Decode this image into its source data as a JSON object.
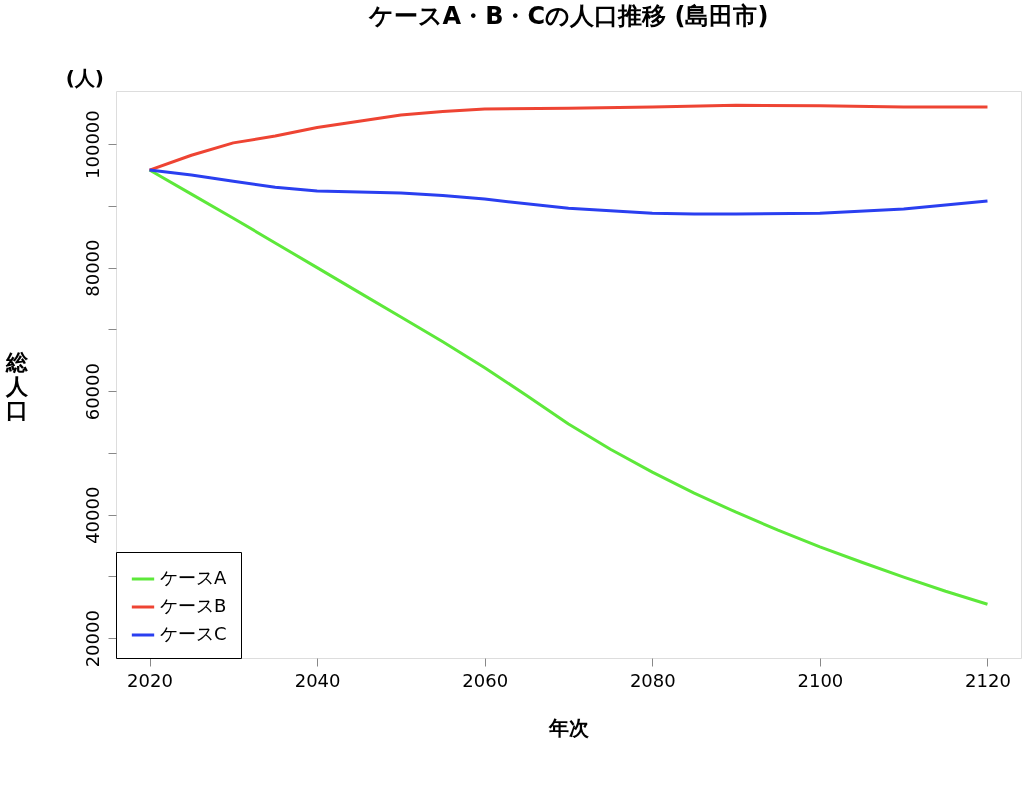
{
  "chart_data": {
    "type": "line",
    "title": "ケースA・B・Cの人口推移 (島田市)",
    "xlabel": "年次",
    "ylabel": "総人口",
    "annotations": [
      "(人)"
    ],
    "xlim": [
      2016,
      2124
    ],
    "xticks": [
      2020,
      2040,
      2060,
      2080,
      2100,
      2120
    ],
    "ylim": [
      16800,
      108600
    ],
    "yticks": [
      20000,
      {
        "value": 30000,
        "label": null
      },
      40000,
      {
        "value": 50000,
        "label": null
      },
      60000,
      {
        "value": 70000,
        "label": null
      },
      80000,
      {
        "value": 90000,
        "label": null
      },
      100000
    ],
    "grid": false,
    "legend": "bottom left",
    "marker": "none",
    "line_style": "solid",
    "series": [
      {
        "name": "ケースA",
        "color": "#5de83a",
        "x": [
          2020,
          2025,
          2030,
          2035,
          2040,
          2045,
          2050,
          2055,
          2060,
          2065,
          2070,
          2075,
          2080,
          2085,
          2090,
          2095,
          2100,
          2105,
          2110,
          2115,
          2120
        ],
        "values": [
          95800,
          91900,
          88000,
          84000,
          80000,
          76000,
          72000,
          68000,
          63800,
          59300,
          54700,
          50600,
          46900,
          43500,
          40400,
          37500,
          34800,
          32300,
          29900,
          27600,
          25500
        ]
      },
      {
        "name": "ケースB",
        "color": "#ee4433",
        "x": [
          2020,
          2025,
          2030,
          2035,
          2040,
          2045,
          2050,
          2055,
          2060,
          2070,
          2080,
          2090,
          2100,
          2110,
          2120
        ],
        "values": [
          95800,
          98200,
          100200,
          101300,
          102700,
          103700,
          104700,
          105300,
          105700,
          105800,
          106000,
          106300,
          106200,
          106000,
          106000
        ]
      },
      {
        "name": "ケースC",
        "color": "#2a3ff0",
        "x": [
          2020,
          2025,
          2030,
          2035,
          2040,
          2050,
          2055,
          2060,
          2070,
          2080,
          2085,
          2090,
          2100,
          2110,
          2120
        ],
        "values": [
          95800,
          95000,
          94000,
          93000,
          92400,
          92100,
          91700,
          91100,
          89600,
          88800,
          88700,
          88700,
          88800,
          89500,
          90800
        ]
      }
    ]
  }
}
